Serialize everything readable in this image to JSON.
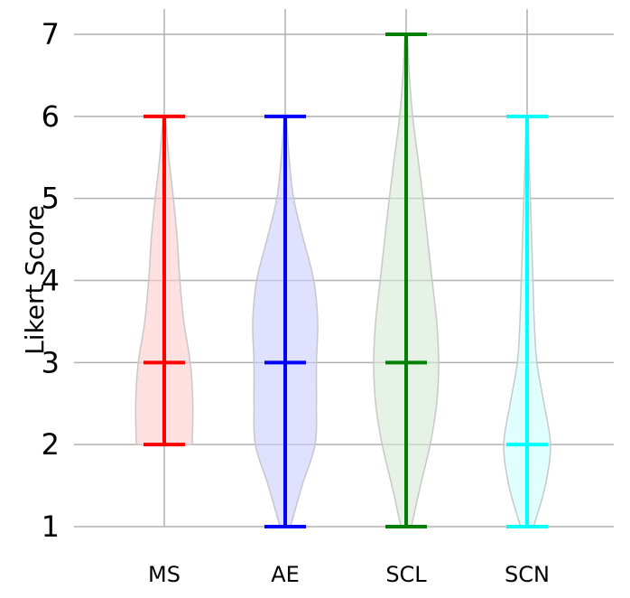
{
  "chart_data": {
    "type": "violin",
    "title": "",
    "xlabel": "",
    "ylabel": "Likert Score",
    "ylim": [
      1,
      7
    ],
    "yticks": [
      1,
      2,
      3,
      4,
      5,
      6,
      7
    ],
    "grid": true,
    "categories": [
      "MS",
      "AE",
      "SCL",
      "SCN"
    ],
    "series": [
      {
        "category": "MS",
        "color": "#ff0000",
        "fill": "#ffcccc",
        "min": 2,
        "median": 3,
        "max": 6,
        "density": [
          [
            2,
            0.43
          ],
          [
            2.5,
            0.44
          ],
          [
            3,
            0.4
          ],
          [
            3.5,
            0.3
          ],
          [
            4,
            0.24
          ],
          [
            4.5,
            0.2
          ],
          [
            5,
            0.14
          ],
          [
            5.5,
            0.07
          ],
          [
            6,
            0.02
          ]
        ]
      },
      {
        "category": "AE",
        "color": "#0000ff",
        "fill": "#ccccff",
        "min": 1,
        "median": 3,
        "max": 6,
        "density": [
          [
            1,
            0.08
          ],
          [
            1.5,
            0.26
          ],
          [
            2,
            0.46
          ],
          [
            2.5,
            0.48
          ],
          [
            3,
            0.48
          ],
          [
            3.5,
            0.5
          ],
          [
            4,
            0.44
          ],
          [
            4.5,
            0.28
          ],
          [
            5,
            0.13
          ],
          [
            5.5,
            0.06
          ],
          [
            6,
            0.02
          ]
        ]
      },
      {
        "category": "SCL",
        "color": "#008000",
        "fill": "#d6ead6",
        "min": 1,
        "median": 3,
        "max": 7,
        "density": [
          [
            1,
            0.08
          ],
          [
            1.5,
            0.22
          ],
          [
            2,
            0.37
          ],
          [
            2.5,
            0.47
          ],
          [
            3,
            0.5
          ],
          [
            3.5,
            0.47
          ],
          [
            4,
            0.4
          ],
          [
            4.5,
            0.33
          ],
          [
            5,
            0.26
          ],
          [
            5.5,
            0.18
          ],
          [
            6,
            0.1
          ],
          [
            6.5,
            0.05
          ],
          [
            7,
            0.02
          ]
        ]
      },
      {
        "category": "SCN",
        "color": "#00ffff",
        "fill": "#ccffff",
        "min": 1,
        "median": 2,
        "max": 6,
        "density": [
          [
            1,
            0.1
          ],
          [
            1.5,
            0.28
          ],
          [
            2,
            0.36
          ],
          [
            2.5,
            0.26
          ],
          [
            3,
            0.15
          ],
          [
            3.5,
            0.11
          ],
          [
            4,
            0.09
          ],
          [
            4.5,
            0.07
          ],
          [
            5,
            0.05
          ],
          [
            5.5,
            0.03
          ],
          [
            6,
            0.02
          ]
        ]
      }
    ]
  }
}
